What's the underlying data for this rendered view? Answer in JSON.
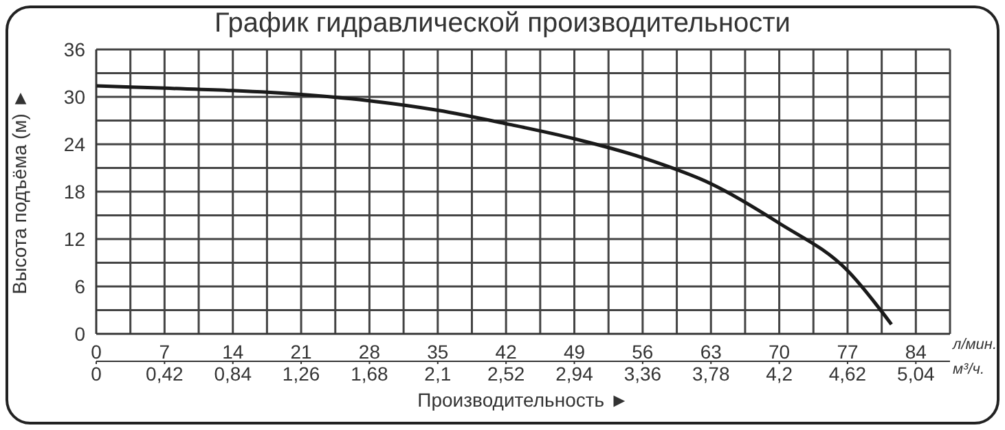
{
  "chart_data": {
    "type": "line",
    "title": "График гидравлической производительности",
    "xlabel": "Производительность ►",
    "ylabel": "Высота подъёма (м) ►",
    "x": [
      0,
      7,
      14,
      21,
      28,
      35,
      42,
      49,
      56,
      63,
      70,
      77,
      81.5
    ],
    "series": [
      {
        "color": "#1a1a1a",
        "values": [
          31.4,
          31.1,
          30.8,
          30.3,
          29.5,
          28.3,
          26.6,
          24.7,
          22.3,
          19,
          14,
          8,
          1.2
        ]
      }
    ],
    "xlim": [
      0,
      87.5
    ],
    "xticks": [
      0,
      7,
      14,
      21,
      28,
      35,
      42,
      49,
      56,
      63,
      70,
      77,
      84
    ],
    "x2lim": [
      0,
      5.25
    ],
    "x2ticks": [
      0,
      {
        "value": 0.42,
        "label": "0,42"
      },
      {
        "value": 0.84,
        "label": "0,84"
      },
      {
        "value": 1.26,
        "label": "1,26"
      },
      {
        "value": 1.68,
        "label": "1,68"
      },
      {
        "value": 2.1,
        "label": "2,1"
      },
      {
        "value": 2.52,
        "label": "2,52"
      },
      {
        "value": 2.94,
        "label": "2,94"
      },
      {
        "value": 3.36,
        "label": "3,36"
      },
      {
        "value": 3.78,
        "label": "3,78"
      },
      {
        "value": 4.2,
        "label": "4,2"
      },
      {
        "value": 4.62,
        "label": "4,62"
      },
      {
        "value": 5.04,
        "label": "5,04"
      }
    ],
    "ylim": [
      0,
      36
    ],
    "yticks": [
      0,
      6,
      12,
      18,
      24,
      30,
      36
    ],
    "annotations": [
      "л/мин.",
      "м³/ч."
    ],
    "grid": true,
    "marker": "none",
    "line_style": "solid"
  }
}
